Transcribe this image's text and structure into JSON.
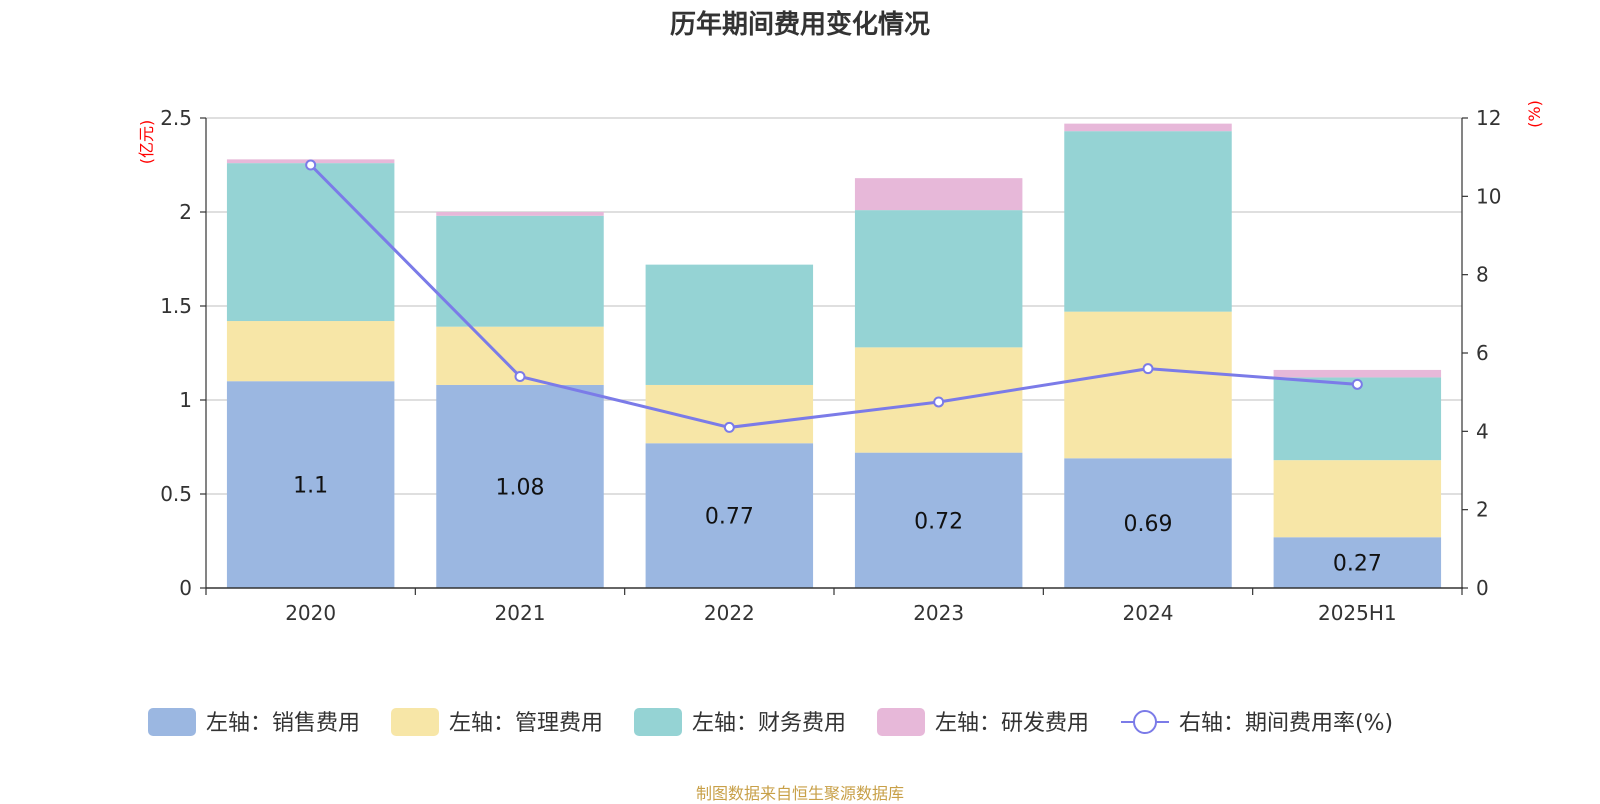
{
  "chart_data": {
    "type": "bar",
    "title": "历年期间费用变化情况",
    "categories": [
      "2020",
      "2021",
      "2022",
      "2023",
      "2024",
      "2025H1"
    ],
    "y_left": {
      "unit": "(亿元)",
      "ticks": [
        "0",
        "0.5",
        "1",
        "1.5",
        "2",
        "2.5"
      ],
      "range": [
        0,
        2.5
      ]
    },
    "y_right": {
      "unit": "(%)",
      "ticks": [
        "0",
        "2",
        "4",
        "6",
        "8",
        "10",
        "12"
      ],
      "range": [
        0,
        12
      ]
    },
    "series": [
      {
        "name": "左轴：销售费用",
        "type": "bar",
        "stack": "left",
        "color": "#9bb7e1",
        "values": [
          1.1,
          1.08,
          0.77,
          0.72,
          0.69,
          0.27
        ],
        "show_labels": true
      },
      {
        "name": "左轴：管理费用",
        "type": "bar",
        "stack": "left",
        "color": "#f7e6a7",
        "values": [
          0.32,
          0.31,
          0.31,
          0.56,
          0.78,
          0.41
        ],
        "show_labels": false
      },
      {
        "name": "左轴：财务费用",
        "type": "bar",
        "stack": "left",
        "color": "#95d3d4",
        "values": [
          0.84,
          0.59,
          0.64,
          0.73,
          0.96,
          0.44
        ],
        "show_labels": false
      },
      {
        "name": "左轴：研发费用",
        "type": "bar",
        "stack": "left",
        "color": "#e7b8d9",
        "values": [
          0.02,
          0.02,
          0.0,
          0.17,
          0.04,
          0.04
        ],
        "show_labels": false
      },
      {
        "name": "右轴：期间费用率(%)",
        "type": "line",
        "axis": "right",
        "color": "#7b7be8",
        "values": [
          10.8,
          5.4,
          4.1,
          4.75,
          5.6,
          5.2
        ],
        "show_labels": false
      }
    ],
    "grid": true,
    "legend_position": "bottom"
  },
  "source_note": "制图数据来自恒生聚源数据库"
}
